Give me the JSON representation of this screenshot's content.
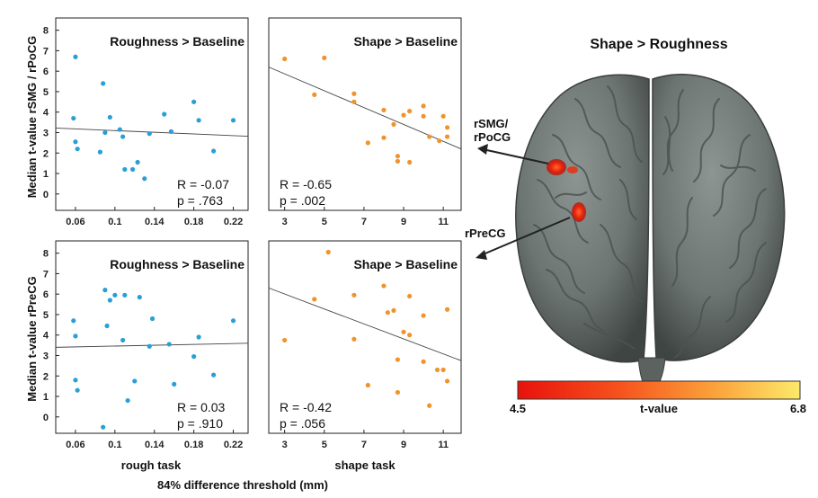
{
  "chart_data": [
    {
      "type": "scatter",
      "title": "Roughness > Baseline",
      "ylabel": "Median t-value rSMG / rPoCG",
      "xlabel": "rough task",
      "xticks": [
        0.06,
        0.1,
        0.14,
        0.18,
        0.22
      ],
      "xtick_labels": [
        "0.06",
        "0.1",
        "0.14",
        "0.18",
        "0.22"
      ],
      "yticks": [
        0,
        1,
        2,
        3,
        4,
        5,
        6,
        7,
        8
      ],
      "xlim": [
        0.04,
        0.235
      ],
      "ylim": [
        -0.8,
        8.6
      ],
      "color": "#2a9fd6",
      "points": [
        [
          0.058,
          3.7
        ],
        [
          0.06,
          6.7
        ],
        [
          0.06,
          2.55
        ],
        [
          0.062,
          2.2
        ],
        [
          0.085,
          2.05
        ],
        [
          0.088,
          5.4
        ],
        [
          0.09,
          3.0
        ],
        [
          0.095,
          3.75
        ],
        [
          0.105,
          3.15
        ],
        [
          0.108,
          2.8
        ],
        [
          0.11,
          1.2
        ],
        [
          0.118,
          1.2
        ],
        [
          0.123,
          1.55
        ],
        [
          0.13,
          0.75
        ],
        [
          0.135,
          2.95
        ],
        [
          0.15,
          3.9
        ],
        [
          0.157,
          3.05
        ],
        [
          0.18,
          4.5
        ],
        [
          0.185,
          3.6
        ],
        [
          0.2,
          2.1
        ],
        [
          0.22,
          3.6
        ]
      ],
      "fit": [
        [
          0.04,
          3.22
        ],
        [
          0.235,
          2.82
        ]
      ],
      "r_text": "R = -0.07",
      "p_text": "p = .763"
    },
    {
      "type": "scatter",
      "title": "Shape > Baseline",
      "ylabel": "",
      "xlabel": "",
      "xticks": [
        3,
        5,
        7,
        9,
        11
      ],
      "xtick_labels": [
        "3",
        "5",
        "7",
        "9",
        "11"
      ],
      "yticks": [],
      "xlim": [
        2.2,
        11.9
      ],
      "ylim": [
        -0.8,
        8.6
      ],
      "color": "#f0932b",
      "points": [
        [
          3,
          6.6
        ],
        [
          4.5,
          4.85
        ],
        [
          5,
          6.65
        ],
        [
          6.5,
          4.9
        ],
        [
          6.5,
          4.5
        ],
        [
          7.2,
          2.5
        ],
        [
          8,
          4.1
        ],
        [
          8,
          2.75
        ],
        [
          8.5,
          3.4
        ],
        [
          8.7,
          1.6
        ],
        [
          8.7,
          1.85
        ],
        [
          9,
          3.85
        ],
        [
          9.3,
          4.05
        ],
        [
          9.3,
          1.55
        ],
        [
          10,
          4.3
        ],
        [
          10,
          3.8
        ],
        [
          10.3,
          2.8
        ],
        [
          10.8,
          2.6
        ],
        [
          11,
          3.8
        ],
        [
          11.2,
          3.25
        ],
        [
          11.2,
          2.8
        ]
      ],
      "fit": [
        [
          2.2,
          6.2
        ],
        [
          11.9,
          2.2
        ]
      ],
      "r_text": "R = -0.65",
      "p_text": "p = .002"
    },
    {
      "type": "scatter",
      "title": "Roughness > Baseline",
      "ylabel": "Median t-value rPreCG",
      "xlabel": "rough task",
      "xticks": [
        0.06,
        0.1,
        0.14,
        0.18,
        0.22
      ],
      "xtick_labels": [
        "0.06",
        "0.1",
        "0.14",
        "0.18",
        "0.22"
      ],
      "yticks": [
        0,
        1,
        2,
        3,
        4,
        5,
        6,
        7,
        8
      ],
      "xlim": [
        0.04,
        0.235
      ],
      "ylim": [
        -0.8,
        8.6
      ],
      "color": "#2a9fd6",
      "points": [
        [
          0.058,
          4.7
        ],
        [
          0.06,
          3.95
        ],
        [
          0.06,
          1.8
        ],
        [
          0.062,
          1.3
        ],
        [
          0.088,
          -0.5
        ],
        [
          0.09,
          6.2
        ],
        [
          0.092,
          4.45
        ],
        [
          0.095,
          5.7
        ],
        [
          0.1,
          5.95
        ],
        [
          0.108,
          3.75
        ],
        [
          0.11,
          5.95
        ],
        [
          0.113,
          0.8
        ],
        [
          0.12,
          1.75
        ],
        [
          0.125,
          5.85
        ],
        [
          0.135,
          3.45
        ],
        [
          0.138,
          4.8
        ],
        [
          0.155,
          3.55
        ],
        [
          0.16,
          1.6
        ],
        [
          0.18,
          2.95
        ],
        [
          0.185,
          3.9
        ],
        [
          0.2,
          2.05
        ],
        [
          0.22,
          4.7
        ]
      ],
      "fit": [
        [
          0.04,
          3.4
        ],
        [
          0.235,
          3.6
        ]
      ],
      "r_text": "R = 0.03",
      "p_text": "p = .910"
    },
    {
      "type": "scatter",
      "title": "Shape > Baseline",
      "ylabel": "",
      "xlabel": "shape task",
      "xticks": [
        3,
        5,
        7,
        9,
        11
      ],
      "xtick_labels": [
        "3",
        "5",
        "7",
        "9",
        "11"
      ],
      "yticks": [],
      "xlim": [
        2.2,
        11.9
      ],
      "ylim": [
        -0.8,
        8.6
      ],
      "color": "#f0932b",
      "points": [
        [
          3,
          3.75
        ],
        [
          4.5,
          5.75
        ],
        [
          5.2,
          8.05
        ],
        [
          6.5,
          5.95
        ],
        [
          6.5,
          3.8
        ],
        [
          7.2,
          1.55
        ],
        [
          8,
          6.4
        ],
        [
          8.2,
          5.1
        ],
        [
          8.5,
          5.2
        ],
        [
          8.7,
          1.2
        ],
        [
          8.7,
          2.8
        ],
        [
          9,
          4.15
        ],
        [
          9.3,
          5.9
        ],
        [
          9.3,
          4.0
        ],
        [
          10,
          4.95
        ],
        [
          10,
          2.7
        ],
        [
          10.3,
          0.55
        ],
        [
          10.7,
          2.3
        ],
        [
          11,
          2.3
        ],
        [
          11.2,
          5.25
        ],
        [
          11.2,
          1.75
        ]
      ],
      "fit": [
        [
          2.2,
          6.3
        ],
        [
          11.9,
          2.75
        ]
      ],
      "r_text": "R = -0.42",
      "p_text": "p = .056"
    }
  ],
  "figure": {
    "shared_xlabel": "84% difference threshold (mm)",
    "brain_title": "Shape > Roughness",
    "label_smg_line1": "rSMG/",
    "label_smg_line2": "rPoCG",
    "label_precg": "rPreCG",
    "colorbar_min": "4.5",
    "colorbar_max": "6.8",
    "colorbar_label": "t-value",
    "colorbar_colors": [
      "#e8120c",
      "#f6501c",
      "#fba33a",
      "#fce96a"
    ]
  }
}
